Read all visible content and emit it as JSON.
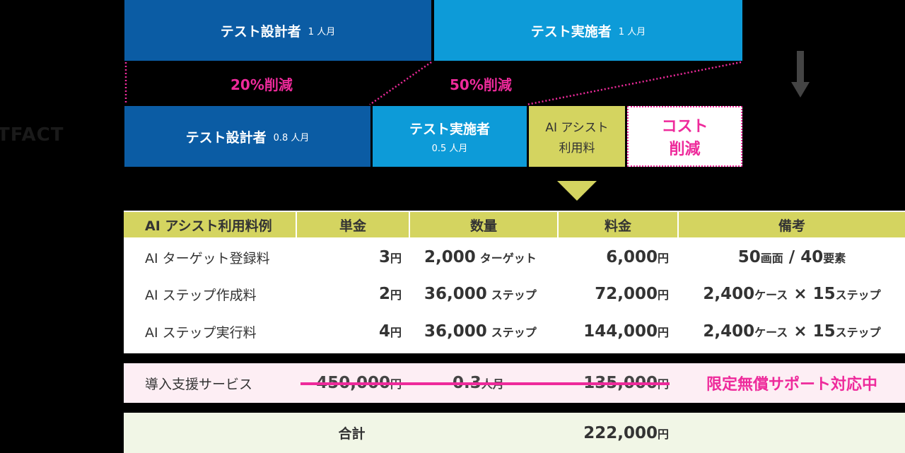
{
  "top": {
    "row1": {
      "designer": {
        "label": "テスト設計者",
        "amount": "1 人月"
      },
      "executor": {
        "label": "テスト実施者",
        "amount": "1 人月"
      }
    },
    "reductions": {
      "designer": "20%削減",
      "executor": "50%削減"
    },
    "logo": "TFACT",
    "row2": {
      "designer": {
        "label": "テスト設計者",
        "amount": "0.8 人月"
      },
      "executor": {
        "label": "テスト実施者",
        "amount": "0.5 人月"
      },
      "ai": {
        "line1": "AI アシスト",
        "line2": "利用料"
      },
      "cost": {
        "line1": "コスト",
        "line2": "削減"
      }
    }
  },
  "table": {
    "headers": [
      "AI アシスト利用料例",
      "単金",
      "数量",
      "料金",
      "備考"
    ],
    "rows": [
      {
        "name": "AI ターゲット登録料",
        "unit_price": "3",
        "unit_price_unit": "円",
        "qty": "2,000",
        "qty_unit": "ターゲット",
        "fee": "6,000",
        "fee_unit": "円",
        "note": [
          {
            "t": "50",
            "u": "画面"
          },
          {
            "t": " / ",
            "u": ""
          },
          {
            "t": "40",
            "u": "要素"
          }
        ]
      },
      {
        "name": "AI ステップ作成料",
        "unit_price": "2",
        "unit_price_unit": "円",
        "qty": "36,000",
        "qty_unit": "ステップ",
        "fee": "72,000",
        "fee_unit": "円",
        "note": [
          {
            "t": "2,400",
            "u": "ケース"
          },
          {
            "t": " × ",
            "u": ""
          },
          {
            "t": "15",
            "u": "ステップ"
          }
        ]
      },
      {
        "name": "AI ステップ実行料",
        "unit_price": "4",
        "unit_price_unit": "円",
        "qty": "36,000",
        "qty_unit": "ステップ",
        "fee": "144,000",
        "fee_unit": "円",
        "note": [
          {
            "t": "2,400",
            "u": "ケース"
          },
          {
            "t": " × ",
            "u": ""
          },
          {
            "t": "15",
            "u": "ステップ"
          }
        ]
      }
    ],
    "support": {
      "name": "導入支援サービス",
      "unit_price": "450,000",
      "unit_price_unit": "円",
      "qty": "0.3",
      "qty_unit": "人月",
      "fee": "135,000",
      "fee_unit": "円",
      "note": "限定無償サポート対応中"
    },
    "total": {
      "label": "合計",
      "fee": "222,000",
      "fee_unit": "円"
    }
  },
  "colors": {
    "dark_blue": "#0b5ca4",
    "light_blue": "#0d9bd8",
    "olive": "#d4d460",
    "magenta": "#ee2a9b"
  },
  "icons": [
    "down-arrow-icon",
    "down-triangle-icon"
  ]
}
